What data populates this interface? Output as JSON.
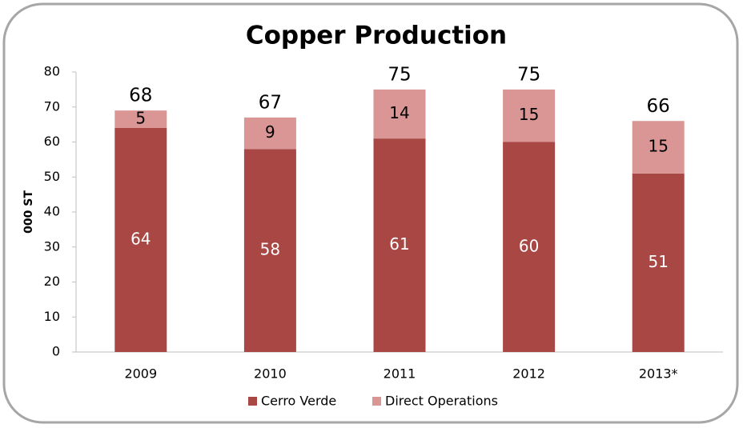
{
  "chart_data": {
    "type": "stacked_bar",
    "title": "Copper Production",
    "y_label": "000 ST",
    "categories": [
      "2009",
      "2010",
      "2011",
      "2012",
      "2013*"
    ],
    "series": [
      {
        "name": "Cerro Verde",
        "color": "#a84744",
        "values": [
          64,
          58,
          61,
          60,
          51
        ]
      },
      {
        "name": "Direct Operations",
        "color": "#d99694",
        "values": [
          5,
          9,
          14,
          15,
          15
        ]
      }
    ],
    "totals": [
      68,
      67,
      75,
      75,
      66
    ],
    "ylim": [
      0,
      80
    ],
    "yticks": [
      0,
      10,
      20,
      30,
      40,
      50,
      60,
      70,
      80
    ],
    "grid": false,
    "legend": "bottom"
  }
}
